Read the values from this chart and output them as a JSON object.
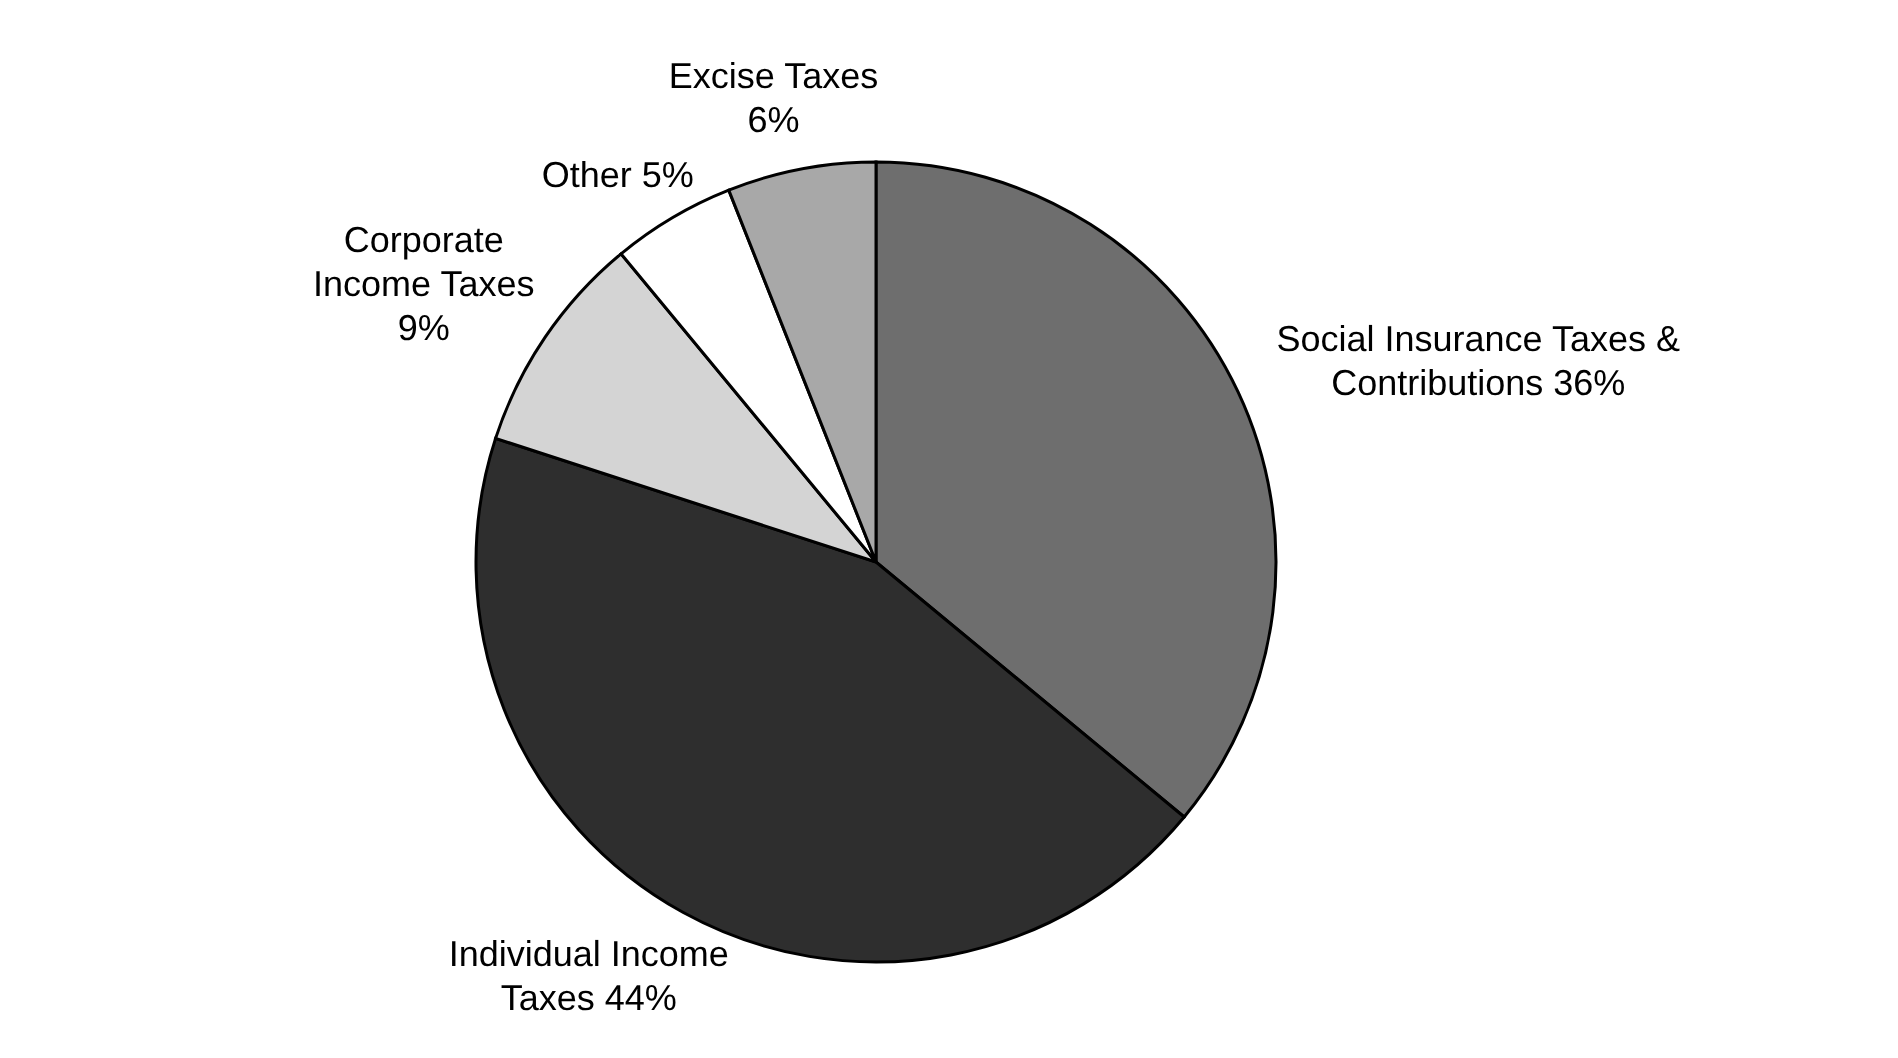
{
  "chart_data": {
    "type": "pie",
    "categories": [
      "Social Insurance Taxes & Contributions",
      "Individual Income Taxes",
      "Corporate Income Taxes",
      "Other",
      "Excise Taxes"
    ],
    "values": [
      36,
      44,
      9,
      5,
      6
    ],
    "value_labels": [
      "36%",
      "44%",
      "9%",
      "5%",
      "6%"
    ],
    "colors": [
      "#6e6e6e",
      "#2e2e2e",
      "#d4d4d4",
      "#ffffff",
      "#a8a8a8"
    ],
    "legend": false
  }
}
